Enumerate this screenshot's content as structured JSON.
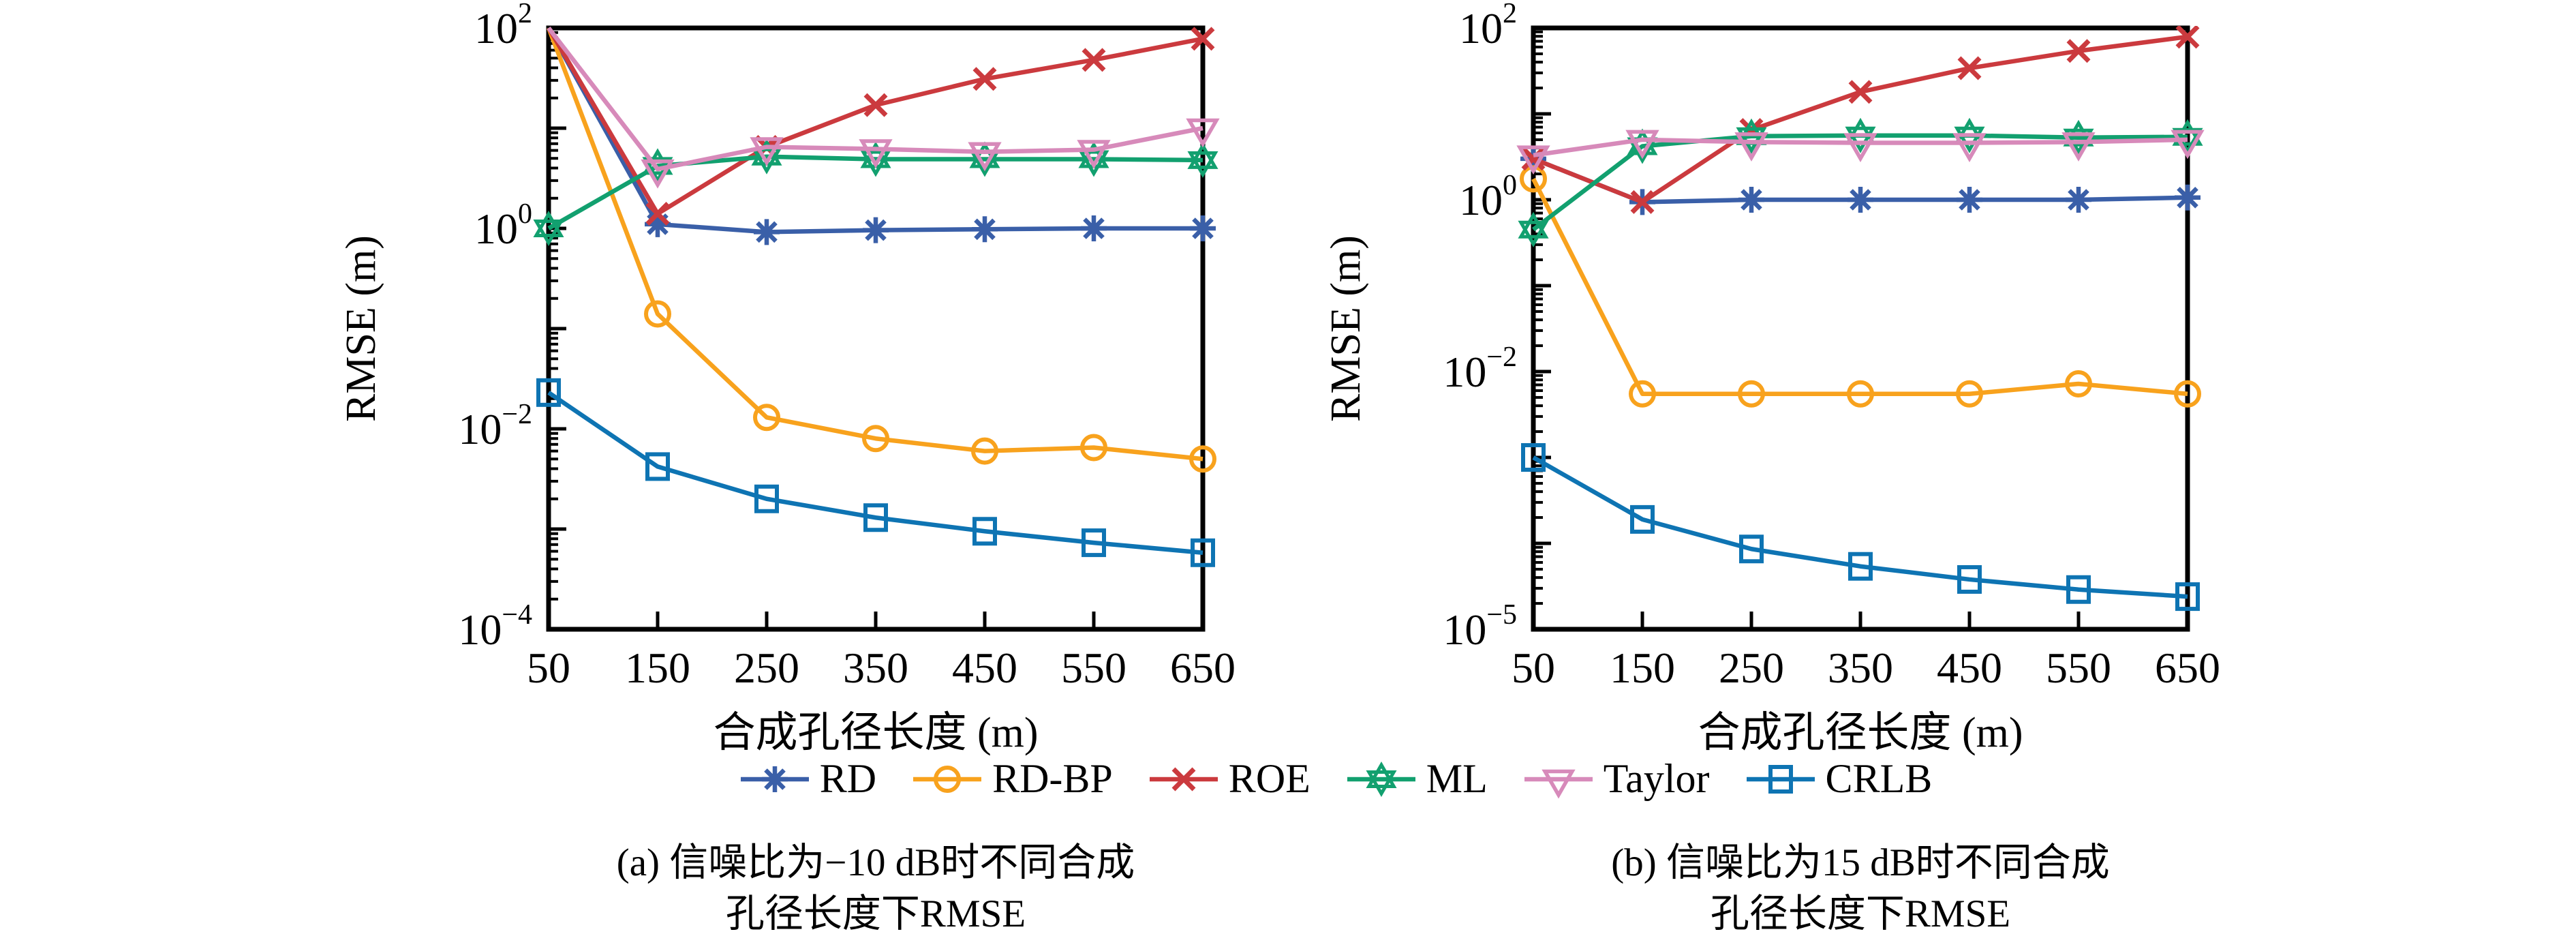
{
  "figure": {
    "background": "#ffffff",
    "axis_color": "#000000",
    "text_color": "#000000"
  },
  "captions": {
    "a": {
      "line1": "(a) 信噪比为−10 dB时不同合成",
      "line2": "孔径长度下RMSE"
    },
    "b": {
      "line1": "(b) 信噪比为15 dB时不同合成",
      "line2": "孔径长度下RMSE"
    }
  },
  "legend": {
    "entries": [
      "RD",
      "RD-BP",
      "ROE",
      "ML",
      "Taylor",
      "CRLB"
    ]
  },
  "chart_data": [
    {
      "id": "a",
      "type": "line",
      "x_scale": "linear",
      "y_scale": "log",
      "title": "",
      "xlabel": "合成孔径长度 (m)",
      "ylabel": "RMSE (m)",
      "x": [
        50,
        150,
        250,
        350,
        450,
        550,
        650
      ],
      "xlim": [
        50,
        650
      ],
      "ylim": [
        0.0001,
        100
      ],
      "y_tick_exponents": [
        2,
        0,
        -2,
        -4
      ],
      "grid": false,
      "series": [
        {
          "name": "RD",
          "color": "#3A5FA8",
          "marker": "asterisk",
          "values": [
            100,
            1.1,
            0.92,
            0.96,
            0.98,
            1.0,
            1.0
          ]
        },
        {
          "name": "RD-BP",
          "color": "#F8A21D",
          "marker": "circle",
          "values": [
            100,
            0.14,
            0.013,
            0.008,
            0.006,
            0.0065,
            0.005
          ]
        },
        {
          "name": "ROE",
          "color": "#CB3A3E",
          "marker": "x",
          "values": [
            100,
            1.4,
            6.5,
            17,
            31,
            48,
            78
          ]
        },
        {
          "name": "ML",
          "color": "#12A06F",
          "marker": "hexagram",
          "values": [
            1.0,
            4.2,
            5.2,
            4.9,
            4.9,
            4.9,
            4.8
          ]
        },
        {
          "name": "Taylor",
          "color": "#D78ABA",
          "marker": "triangle-down",
          "values": [
            100,
            3.9,
            6.5,
            6.2,
            5.8,
            6.1,
            10
          ]
        },
        {
          "name": "CRLB",
          "color": "#0E74B3",
          "marker": "square",
          "values": [
            0.023,
            0.0042,
            0.002,
            0.0013,
            0.00095,
            0.00073,
            0.00058
          ]
        }
      ]
    },
    {
      "id": "b",
      "type": "line",
      "x_scale": "linear",
      "y_scale": "log",
      "title": "",
      "xlabel": "合成孔径长度 (m)",
      "ylabel": "RMSE (m)",
      "x": [
        50,
        150,
        250,
        350,
        450,
        550,
        650
      ],
      "xlim": [
        50,
        650
      ],
      "ylim": [
        1e-05,
        100
      ],
      "y_tick_exponents": [
        2,
        0,
        -2,
        -5
      ],
      "grid": false,
      "series": [
        {
          "name": "RD",
          "color": "#3A5FA8",
          "marker": "asterisk",
          "values": [
            3.0,
            0.94,
            1.0,
            1.0,
            1.0,
            1.0,
            1.06
          ]
        },
        {
          "name": "RD-BP",
          "color": "#F8A21D",
          "marker": "circle",
          "values": [
            1.75,
            0.0055,
            0.0055,
            0.0055,
            0.0055,
            0.0072,
            0.0055
          ]
        },
        {
          "name": "ROE",
          "color": "#CB3A3E",
          "marker": "x",
          "values": [
            3.0,
            0.94,
            6.5,
            18,
            34,
            54,
            79
          ]
        },
        {
          "name": "ML",
          "color": "#12A06F",
          "marker": "hexagram",
          "values": [
            0.45,
            4.2,
            5.5,
            5.6,
            5.6,
            5.3,
            5.4
          ]
        },
        {
          "name": "Taylor",
          "color": "#D78ABA",
          "marker": "triangle-down",
          "values": [
            3.3,
            5.0,
            4.7,
            4.6,
            4.6,
            4.7,
            5.0
          ]
        },
        {
          "name": "CRLB",
          "color": "#0E74B3",
          "marker": "square",
          "values": [
            0.001,
            0.00019,
            8.6e-05,
            5.4e-05,
            3.8e-05,
            2.9e-05,
            2.4e-05
          ]
        }
      ]
    }
  ]
}
